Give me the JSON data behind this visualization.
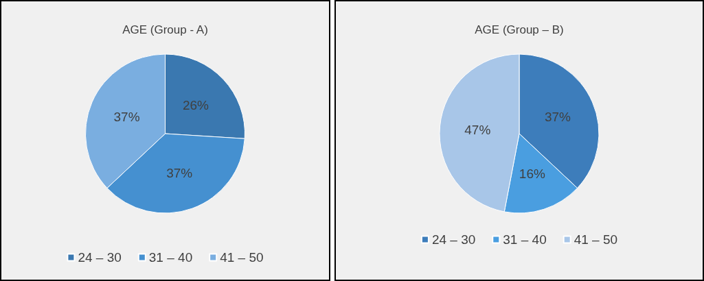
{
  "chart_data": [
    {
      "type": "pie",
      "title": "AGE (Group - A)",
      "categories": [
        "24 – 30",
        "31 – 40",
        "41 – 50"
      ],
      "values": [
        26,
        37,
        37
      ],
      "value_labels": [
        "26%",
        "37%",
        "37%"
      ],
      "colors": [
        "#3a78b0",
        "#4590d0",
        "#7aaee0"
      ],
      "legend": "bottom"
    },
    {
      "type": "pie",
      "title": "AGE (Group – B)",
      "categories": [
        "24 – 30",
        "31 – 40",
        "41 – 50"
      ],
      "values": [
        37,
        16,
        47
      ],
      "value_labels": [
        "37%",
        "16%",
        "47%"
      ],
      "colors": [
        "#3d7dbb",
        "#4a9ee0",
        "#a8c6e8"
      ],
      "legend": "bottom"
    }
  ]
}
